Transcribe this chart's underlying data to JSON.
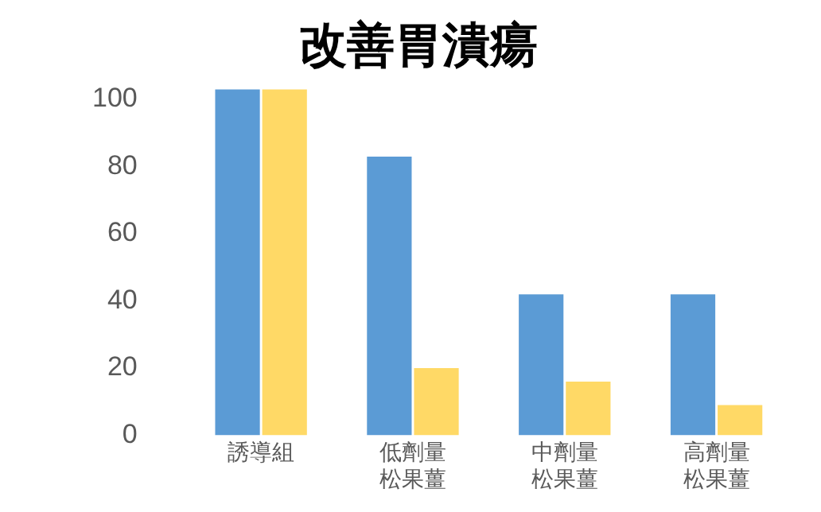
{
  "chart_data": {
    "type": "bar",
    "title": "改善胃潰瘍",
    "categories": [
      "誘導組",
      "低劑量松果薑",
      "中劑量松果薑",
      "高劑量松果薑"
    ],
    "series": [
      {
        "color": "#5b9bd5",
        "values": [
          103,
          83,
          42,
          42
        ]
      },
      {
        "color": "#ffd966",
        "values": [
          103,
          20,
          16,
          9
        ]
      }
    ],
    "ylim": [
      0,
      105
    ],
    "yticks": [
      0,
      20,
      40,
      60,
      80,
      100
    ],
    "grid": false,
    "legend": false
  }
}
